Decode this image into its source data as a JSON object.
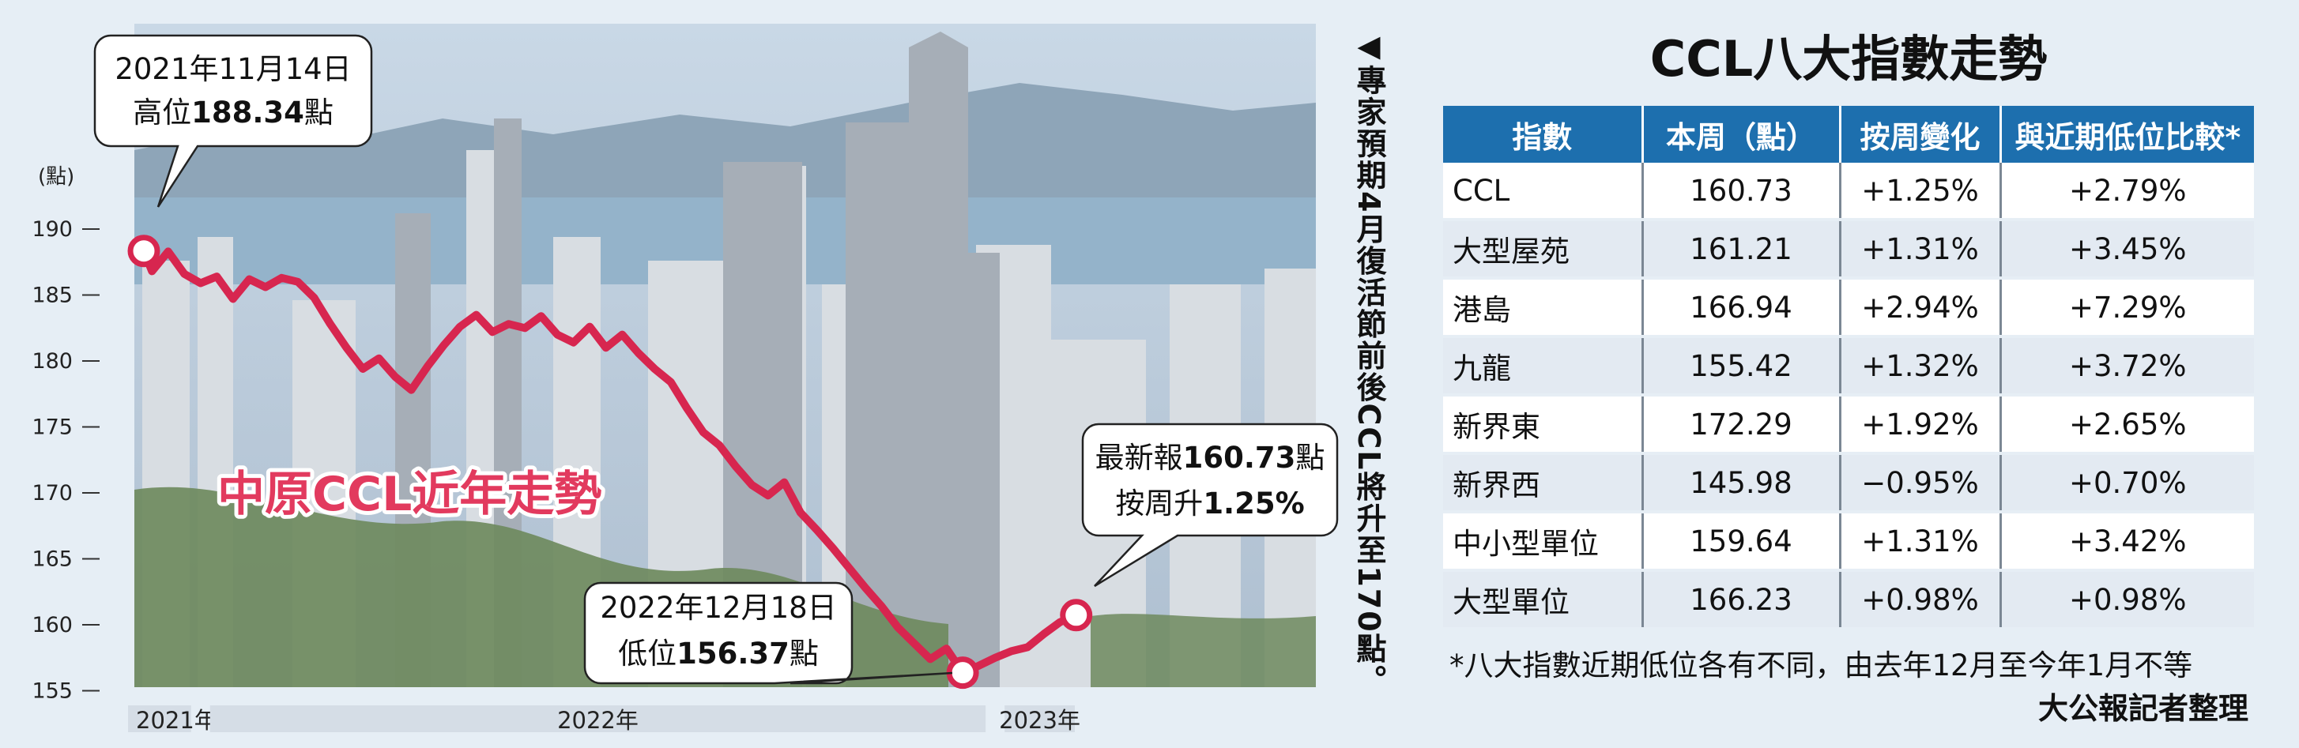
{
  "chart_data": {
    "type": "line",
    "title": "中原CCL近年走勢",
    "unit_label": "(點)",
    "ylim": [
      153,
      193
    ],
    "yticks": [
      190,
      185,
      180,
      175,
      170,
      165,
      160,
      155
    ],
    "xlim": [
      0,
      116
    ],
    "periods": [
      {
        "label": "2021年",
        "x0": 0,
        "x1": 7
      },
      {
        "label": "2022年",
        "x0": 7,
        "x1": 105
      },
      {
        "label": "2023年",
        "x0": 105,
        "x1": 116
      }
    ],
    "series": [
      {
        "x": [
          0,
          1,
          3,
          5,
          7,
          9,
          11,
          13,
          15,
          17,
          19,
          21,
          23,
          25,
          27,
          29,
          31,
          33,
          35,
          37,
          39,
          41,
          43,
          45,
          47,
          49,
          51,
          53,
          55,
          57,
          59,
          61,
          63,
          65,
          67,
          69,
          71,
          73,
          75,
          77,
          79,
          81,
          83,
          85,
          87,
          89,
          91,
          93,
          95,
          97,
          99,
          101,
          103,
          105,
          107,
          109,
          111,
          113,
          115
        ],
        "values": [
          188.34,
          186.8,
          188.3,
          186.6,
          185.9,
          186.4,
          184.7,
          186.2,
          185.6,
          186.3,
          186.0,
          184.8,
          182.8,
          181.0,
          179.4,
          180.2,
          178.8,
          177.8,
          179.6,
          181.2,
          182.6,
          183.5,
          182.2,
          182.8,
          182.5,
          183.4,
          182.0,
          181.4,
          182.6,
          181.0,
          182.0,
          180.6,
          179.4,
          178.4,
          176.4,
          174.6,
          173.6,
          172.0,
          170.6,
          169.8,
          170.8,
          168.5,
          167.2,
          165.8,
          164.3,
          162.8,
          161.4,
          159.8,
          158.6,
          157.4,
          158.2,
          156.37,
          156.9,
          157.5,
          158.0,
          158.3,
          159.3,
          160.2,
          160.73
        ]
      }
    ],
    "annotations": [
      {
        "point_index": 0,
        "date": "2021年11月14日",
        "prefix": "高位",
        "value": "188.34",
        "suffix": "點"
      },
      {
        "point_index": 51,
        "date": "2022年12月18日",
        "prefix": "低位",
        "value": "156.37",
        "suffix": "點"
      },
      {
        "point_index": 58,
        "line1_prefix": "最新報",
        "line1_value": "160.73",
        "line1_suffix": "點",
        "line2_prefix": "按周升",
        "line2_value": "1.25%"
      }
    ]
  },
  "side_note": "◀專家預期4月復活節前後CCL將升至170點。",
  "table": {
    "title": "CCL八大指數走勢",
    "headers": [
      "指數",
      "本周（點）",
      "按周變化",
      "與近期低位比較*"
    ],
    "rows": [
      [
        "CCL",
        "160.73",
        "+1.25%",
        "+2.79%"
      ],
      [
        "大型屋苑",
        "161.21",
        "+1.31%",
        "+3.45%"
      ],
      [
        "港島",
        "166.94",
        "+2.94%",
        "+7.29%"
      ],
      [
        "九龍",
        "155.42",
        "+1.32%",
        "+3.72%"
      ],
      [
        "新界東",
        "172.29",
        "+1.92%",
        "+2.65%"
      ],
      [
        "新界西",
        "145.98",
        "−0.95%",
        "+0.70%"
      ],
      [
        "中小型單位",
        "159.64",
        "+1.31%",
        "+3.42%"
      ],
      [
        "大型單位",
        "166.23",
        "+0.98%",
        "+0.98%"
      ]
    ],
    "footnote": "*八大指數近期低位各有不同，由去年12月至今年1月不等"
  },
  "source": "大公報記者整理",
  "colors": {
    "line": "#d7264f",
    "title": "#e23a5e",
    "header_bg": "#1d6fae",
    "sky": "#b8cbdc",
    "mountain": "#7a93a8",
    "water": "#8fb0c8",
    "greenery": "#6f8a5e",
    "period_band": "#d5dde6"
  }
}
